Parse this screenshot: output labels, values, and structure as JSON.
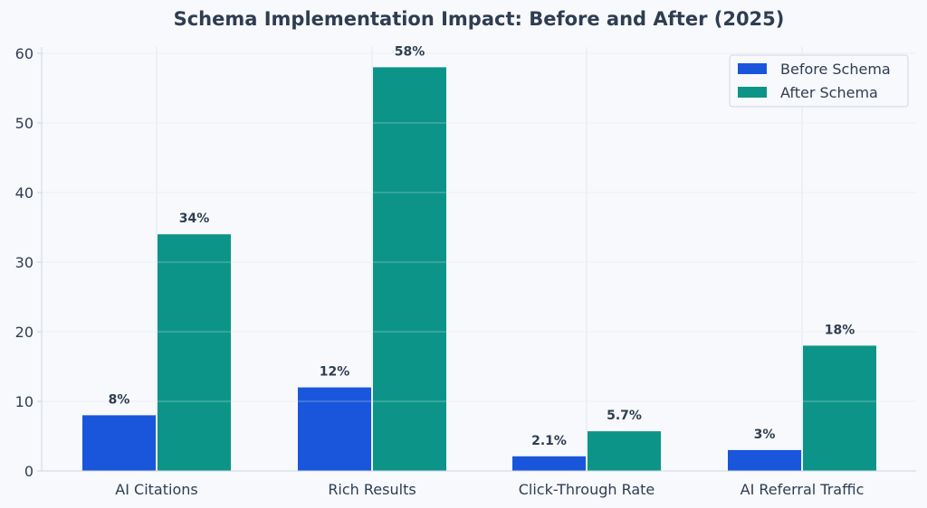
{
  "chart_data": {
    "type": "bar",
    "title": "Schema Implementation Impact: Before and After (2025)",
    "xlabel": "",
    "ylabel": "",
    "categories": [
      "AI Citations",
      "Rich Results",
      "Click-Through Rate",
      "AI Referral Traffic"
    ],
    "series": [
      {
        "name": "Before Schema",
        "color": "#1a56db",
        "values": [
          8,
          12,
          2.1,
          3
        ],
        "labels": [
          "8%",
          "12%",
          "2.1%",
          "3%"
        ]
      },
      {
        "name": "After Schema",
        "color": "#0d9488",
        "values": [
          34,
          58,
          5.7,
          18
        ],
        "labels": [
          "34%",
          "58%",
          "5.7%",
          "18%"
        ]
      }
    ],
    "ylim": [
      0,
      61
    ],
    "yticks": [
      "0",
      "10",
      "20",
      "30",
      "40",
      "50",
      "60"
    ],
    "grid": true,
    "legend_position": "top-right"
  }
}
